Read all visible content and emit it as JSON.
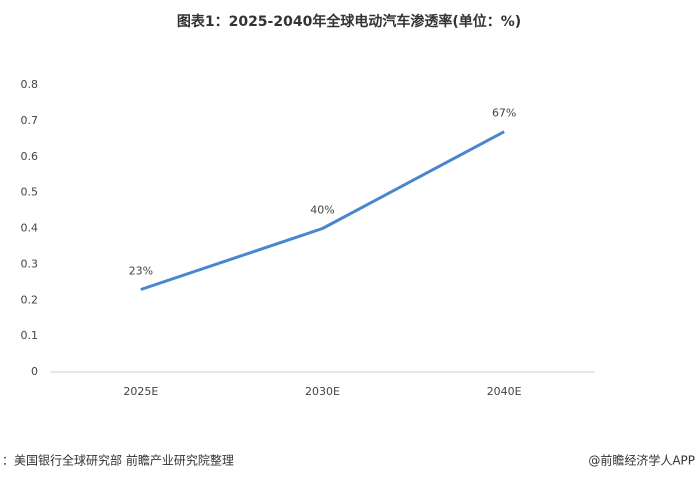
{
  "chart_data": {
    "type": "line",
    "title": "图表1：2025-2040年全球电动汽车渗透率(单位：%)",
    "categories": [
      "2025E",
      "2030E",
      "2040E"
    ],
    "series": [
      {
        "name": "全球电动汽车渗透率",
        "color": "#4a86d0",
        "values": [
          0.23,
          0.4,
          0.67
        ],
        "value_labels": [
          "23%",
          "40%",
          "67%"
        ]
      }
    ],
    "ylim": [
      0,
      0.8
    ],
    "yticks": [
      0,
      0.1,
      0.2,
      0.3,
      0.4,
      0.5,
      0.6,
      0.7,
      0.8
    ],
    "grid": false,
    "source": "：美国银行全球研究部 前瞻产业研究院整理",
    "credit": "@前瞻经济学人APP"
  }
}
